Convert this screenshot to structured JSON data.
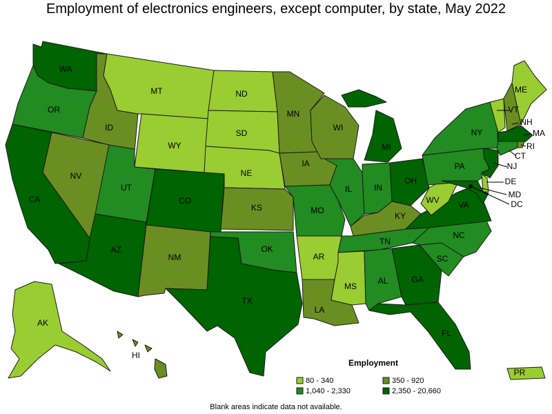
{
  "title": "Employment of electronics engineers, except computer, by state, May 2022",
  "footnote": "Blank areas indicate data not available.",
  "colors": {
    "c1": "#9acd32",
    "c2": "#6b8e23",
    "c3": "#228b22",
    "c4": "#006400",
    "border": "#1a1a1a"
  },
  "legend": {
    "title": "Employment",
    "items": [
      {
        "label": "80 - 340",
        "color_key": "c1"
      },
      {
        "label": "350 - 920",
        "color_key": "c2"
      },
      {
        "label": "1,040 - 2,330",
        "color_key": "c3"
      },
      {
        "label": "2,350 - 20,660",
        "color_key": "c4"
      }
    ]
  },
  "states": [
    {
      "abbr": "WA",
      "bin": "c4"
    },
    {
      "abbr": "OR",
      "bin": "c3"
    },
    {
      "abbr": "CA",
      "bin": "c4"
    },
    {
      "abbr": "ID",
      "bin": "c2"
    },
    {
      "abbr": "NV",
      "bin": "c2"
    },
    {
      "abbr": "MT",
      "bin": "c1"
    },
    {
      "abbr": "WY",
      "bin": "c1"
    },
    {
      "abbr": "UT",
      "bin": "c3"
    },
    {
      "abbr": "AZ",
      "bin": "c4"
    },
    {
      "abbr": "CO",
      "bin": "c4"
    },
    {
      "abbr": "NM",
      "bin": "c2"
    },
    {
      "abbr": "ND",
      "bin": "c1"
    },
    {
      "abbr": "SD",
      "bin": "c1"
    },
    {
      "abbr": "NE",
      "bin": "c1"
    },
    {
      "abbr": "KS",
      "bin": "c2"
    },
    {
      "abbr": "OK",
      "bin": "c3"
    },
    {
      "abbr": "TX",
      "bin": "c4"
    },
    {
      "abbr": "MN",
      "bin": "c2"
    },
    {
      "abbr": "IA",
      "bin": "c2"
    },
    {
      "abbr": "MO",
      "bin": "c3"
    },
    {
      "abbr": "AR",
      "bin": "c1"
    },
    {
      "abbr": "LA",
      "bin": "c2"
    },
    {
      "abbr": "WI",
      "bin": "c2"
    },
    {
      "abbr": "IL",
      "bin": "c3"
    },
    {
      "abbr": "MI",
      "bin": "c4"
    },
    {
      "abbr": "IN",
      "bin": "c3"
    },
    {
      "abbr": "OH",
      "bin": "c4"
    },
    {
      "abbr": "KY",
      "bin": "c2"
    },
    {
      "abbr": "TN",
      "bin": "c3"
    },
    {
      "abbr": "MS",
      "bin": "c1"
    },
    {
      "abbr": "AL",
      "bin": "c3"
    },
    {
      "abbr": "GA",
      "bin": "c4"
    },
    {
      "abbr": "FL",
      "bin": "c4"
    },
    {
      "abbr": "SC",
      "bin": "c3"
    },
    {
      "abbr": "NC",
      "bin": "c3"
    },
    {
      "abbr": "VA",
      "bin": "c4"
    },
    {
      "abbr": "WV",
      "bin": "c1"
    },
    {
      "abbr": "PA",
      "bin": "c3"
    },
    {
      "abbr": "NY",
      "bin": "c3"
    },
    {
      "abbr": "VT",
      "bin": "c1"
    },
    {
      "abbr": "NH",
      "bin": "c2"
    },
    {
      "abbr": "ME",
      "bin": "c1"
    },
    {
      "abbr": "MA",
      "bin": "c4"
    },
    {
      "abbr": "RI",
      "bin": "c2"
    },
    {
      "abbr": "CT",
      "bin": "c3"
    },
    {
      "abbr": "NJ",
      "bin": "c4"
    },
    {
      "abbr": "DE",
      "bin": "c1"
    },
    {
      "abbr": "MD",
      "bin": "c4"
    },
    {
      "abbr": "DC",
      "bin": "c4"
    },
    {
      "abbr": "AK",
      "bin": "c1"
    },
    {
      "abbr": "HI",
      "bin": "c2"
    },
    {
      "abbr": "PR",
      "bin": "c1"
    }
  ]
}
